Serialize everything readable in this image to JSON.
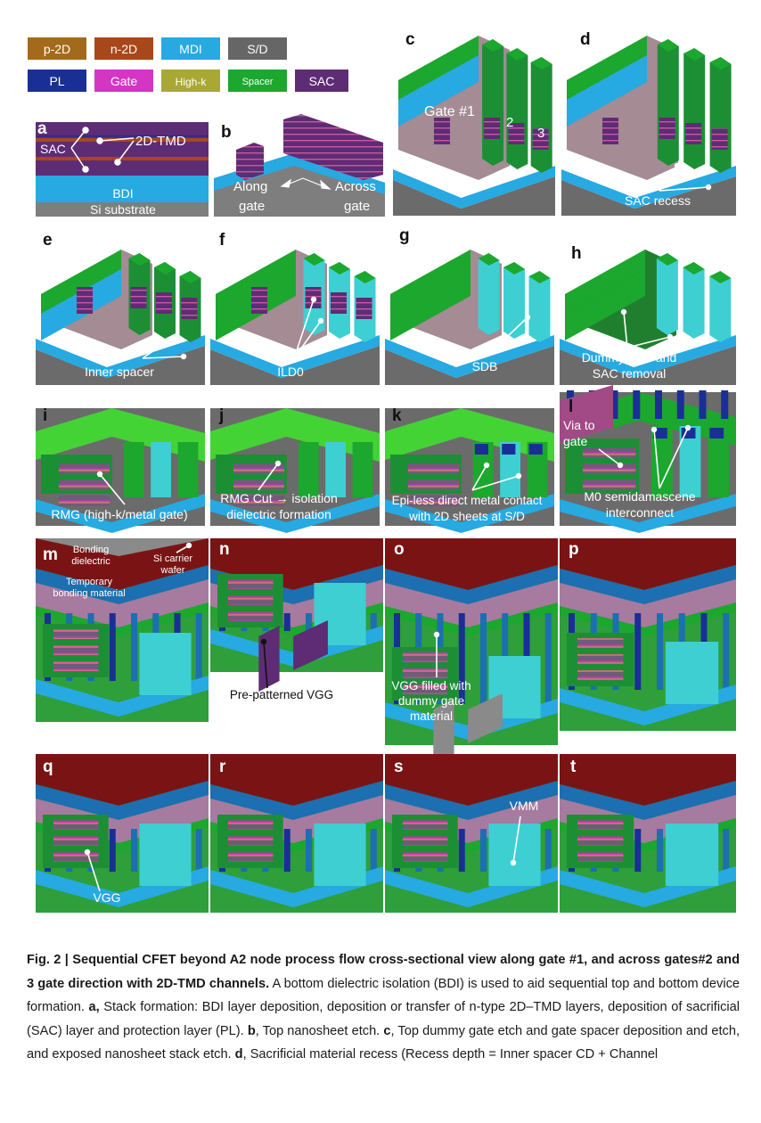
{
  "legend": [
    {
      "label": "p-2D",
      "color": "#a46a1c"
    },
    {
      "label": "n-2D",
      "color": "#a8481a"
    },
    {
      "label": "MDI",
      "color": "#27a9e1"
    },
    {
      "label": "S/D",
      "color": "#666666"
    },
    {
      "label": "PL",
      "color": "#1a2f96"
    },
    {
      "label": "Gate",
      "color": "#d535c3"
    },
    {
      "label": "High-k",
      "color": "#a9a834"
    },
    {
      "label": "Spacer",
      "color": "#1ca72e"
    },
    {
      "label": "SAC",
      "color": "#5e2c74"
    }
  ],
  "panels": {
    "a": {
      "letter": "a",
      "labels": [
        "SAC",
        "2D-TMD",
        "BDI",
        "Si substrate"
      ]
    },
    "b": {
      "letter": "b",
      "labels": [
        "Along",
        "gate",
        "Across",
        "gate"
      ]
    },
    "c": {
      "letter": "c",
      "labels": [
        "Gate #1",
        "2",
        "3"
      ]
    },
    "d": {
      "letter": "d",
      "labels": [
        "SAC recess"
      ]
    },
    "e": {
      "letter": "e",
      "labels": [
        "Inner spacer"
      ]
    },
    "f": {
      "letter": "f",
      "labels": [
        "ILD0"
      ]
    },
    "g": {
      "letter": "g",
      "labels": [
        "SDB"
      ]
    },
    "h": {
      "letter": "h",
      "labels": [
        "Dummy gate and",
        "SAC removal"
      ]
    },
    "i": {
      "letter": "i",
      "labels": [
        "RMG (high-k/metal gate)"
      ]
    },
    "j": {
      "letter": "j",
      "labels": [
        "RMG Cut → isolation",
        "dielectric formation"
      ]
    },
    "k": {
      "letter": "k",
      "labels": [
        "Epi-less direct metal contact",
        "with 2D sheets at S/D"
      ]
    },
    "l": {
      "letter": "l",
      "labels": [
        "Via to",
        "gate",
        "M0 semidamascene",
        "interconnect"
      ]
    },
    "m": {
      "letter": "m",
      "labels": [
        "Bonding",
        "dielectric",
        "Si carrier",
        "wafer",
        "Temporary",
        "bonding material"
      ]
    },
    "n": {
      "letter": "n",
      "labels": [
        "Pre-patterned VGG"
      ]
    },
    "o": {
      "letter": "o",
      "labels": [
        "VGG filled with",
        "dummy gate",
        "material"
      ]
    },
    "p": {
      "letter": "p",
      "labels": []
    },
    "q": {
      "letter": "q",
      "labels": [
        "VGG"
      ]
    },
    "r": {
      "letter": "r",
      "labels": []
    },
    "s": {
      "letter": "s",
      "labels": [
        "VMM"
      ]
    },
    "t": {
      "letter": "t",
      "labels": []
    }
  },
  "caption": {
    "title": "Fig. 2 | Sequential CFET beyond A2 node process flow cross-sectional view along gate #1, and across gates#2 and 3 gate direction with 2D-TMD channels.",
    "body_intro": " A bottom dielectric isolation (BDI) is used to aid sequential top and bottom device formation. ",
    "a_label": "a,",
    "a_text": " Stack formation: BDI layer deposition, deposition or transfer of n-type 2D–TMD layers, deposition of sacrificial (SAC) layer and protection layer (PL). ",
    "b_label": "b",
    "b_text": ", Top nanosheet etch. ",
    "c_label": "c",
    "c_text": ", Top dummy gate etch and gate spacer deposition and etch, and exposed nanosheet stack etch. ",
    "d_label": "d",
    "d_text": ", Sacrificial material recess (Recess depth = Inner spacer CD + Channel"
  }
}
